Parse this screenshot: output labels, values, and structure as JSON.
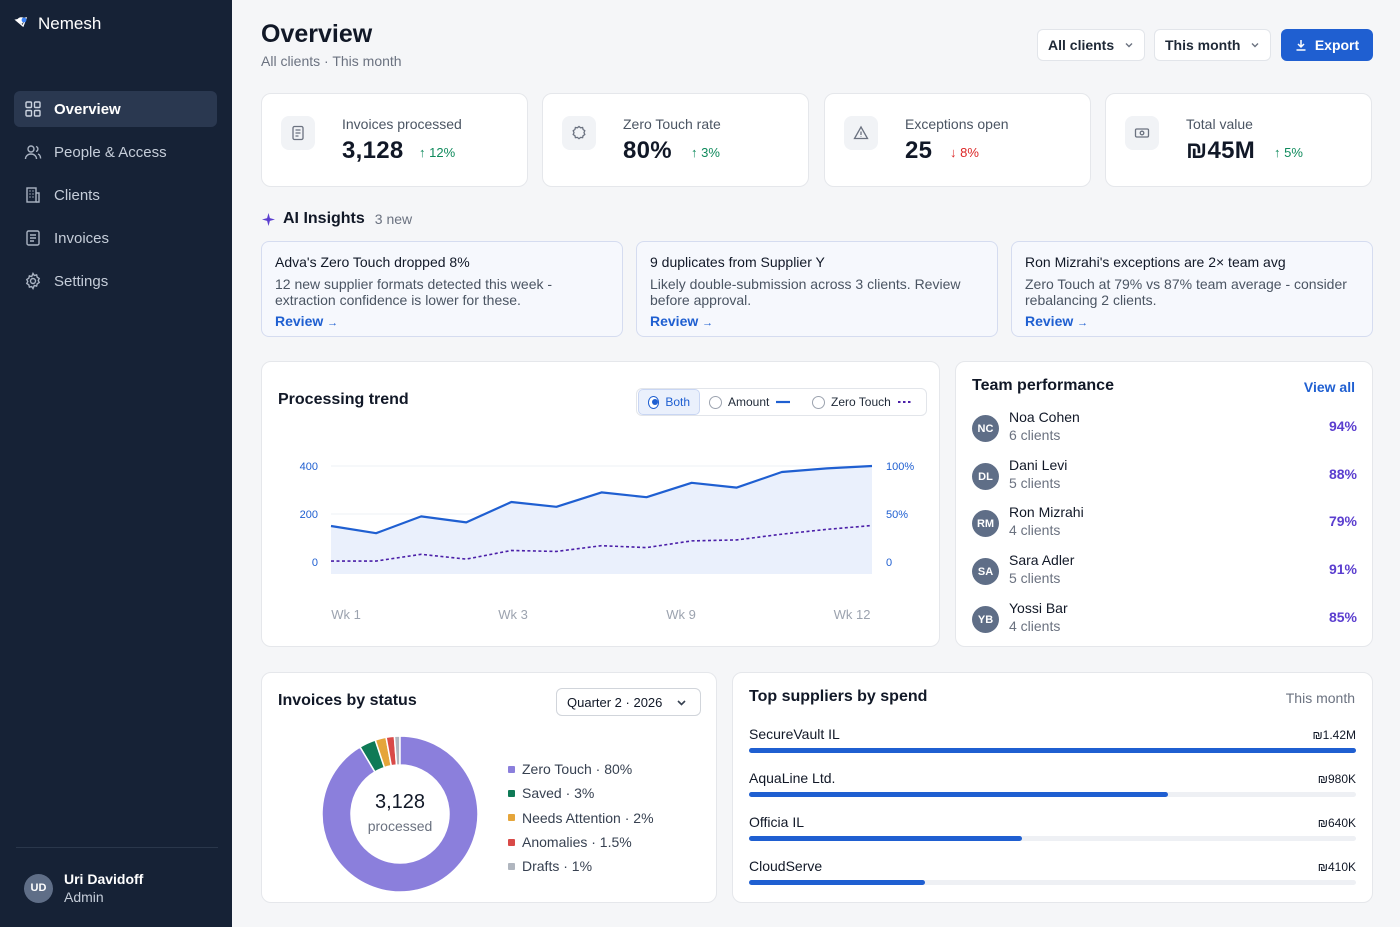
{
  "app": {
    "brand": "Nemesh"
  },
  "sidebar": {
    "items": [
      {
        "label": "Overview",
        "icon": "grid-icon",
        "active": true
      },
      {
        "label": "People & Access",
        "icon": "users-icon",
        "active": false
      },
      {
        "label": "Clients",
        "icon": "building-icon",
        "active": false
      },
      {
        "label": "Invoices",
        "icon": "invoice-icon",
        "active": false
      },
      {
        "label": "Settings",
        "icon": "gear-icon",
        "active": false
      }
    ],
    "user": {
      "initials": "UD",
      "name": "Uri Davidoff",
      "role": "Admin"
    }
  },
  "header": {
    "title": "Overview",
    "subtitle": "All clients · This month",
    "client_filter": "All clients",
    "period_filter": "This month",
    "export_label": "Export"
  },
  "kpis": [
    {
      "label": "Invoices processed",
      "value": "3,128",
      "delta": "12%",
      "direction": "up",
      "icon": "document-icon"
    },
    {
      "label": "Zero Touch rate",
      "value": "80%",
      "delta": "3%",
      "direction": "up",
      "icon": "badge-icon"
    },
    {
      "label": "Exceptions open",
      "value": "25",
      "delta": "8%",
      "direction": "down",
      "icon": "warning-icon"
    },
    {
      "label": "Total value",
      "value": "₪45M",
      "delta": "5%",
      "direction": "up",
      "icon": "cash-icon"
    }
  ],
  "insights": {
    "title": "AI Insights",
    "count": "3 new",
    "items": [
      {
        "title": "Adva's Zero Touch dropped 8%",
        "body": "12 new supplier formats detected this week - extraction confidence is lower for these.",
        "link": "Review"
      },
      {
        "title": "9 duplicates from Supplier Y",
        "body": "Likely double-submission across 3 clients. Review before approval.",
        "link": "Review"
      },
      {
        "title": "Ron Mizrahi's exceptions are 2× team avg",
        "body": "Zero Touch at 79% vs 87% team average - consider rebalancing 2 clients.",
        "link": "Review"
      }
    ]
  },
  "trend": {
    "title": "Processing trend",
    "toggle": {
      "both": "Both",
      "amount": "Amount",
      "zero_touch": "Zero Touch",
      "selected": "both"
    }
  },
  "chart_data": {
    "type": "line",
    "title": "Processing trend",
    "x_tick_labels": [
      "Wk 1",
      "Wk 3",
      "Wk 9",
      "Wk 12"
    ],
    "y_left_ticks": [
      "400",
      "200",
      "0"
    ],
    "y_right_ticks": [
      "100%",
      "50%",
      "0"
    ],
    "ylim_left": [
      0,
      400
    ],
    "ylim_right": [
      0,
      100
    ],
    "series": [
      {
        "name": "Amount",
        "axis": "left",
        "style": "solid-area",
        "values": [
          150,
          120,
          190,
          165,
          250,
          230,
          290,
          270,
          330,
          310,
          375,
          390,
          400
        ]
      },
      {
        "name": "Zero Touch",
        "axis": "right",
        "style": "dashed",
        "values": [
          1,
          1,
          8,
          3,
          12,
          11,
          17,
          15,
          22,
          23,
          29,
          34,
          38
        ]
      }
    ],
    "colors": {
      "amount": "#1f5fd1",
      "zero_touch": "#4b1fa8",
      "area": "#eaf0fc"
    }
  },
  "team": {
    "title": "Team performance",
    "view_all": "View all",
    "members": [
      {
        "initials": "NC",
        "name": "Noa Cohen",
        "clients": "6 clients",
        "pct": "94%"
      },
      {
        "initials": "DL",
        "name": "Dani Levi",
        "clients": "5 clients",
        "pct": "88%"
      },
      {
        "initials": "RM",
        "name": "Ron Mizrahi",
        "clients": "4 clients",
        "pct": "79%"
      },
      {
        "initials": "SA",
        "name": "Sara Adler",
        "clients": "5 clients",
        "pct": "91%"
      },
      {
        "initials": "YB",
        "name": "Yossi Bar",
        "clients": "4 clients",
        "pct": "85%"
      }
    ]
  },
  "status": {
    "title": "Invoices by status",
    "period": "Quarter 2 · 2026",
    "center_value": "3,128",
    "center_label": "processed",
    "slices": [
      {
        "label": "Zero Touch · 80%",
        "value": 80,
        "color": "#8b7fdc"
      },
      {
        "label": "Saved · 3%",
        "value": 3,
        "color": "#0f7a56"
      },
      {
        "label": "Needs Attention · 2%",
        "value": 2,
        "color": "#e5a53a"
      },
      {
        "label": "Anomalies · 1.5%",
        "value": 1.5,
        "color": "#d94a48"
      },
      {
        "label": "Drafts · 1%",
        "value": 1,
        "color": "#b0b6bf"
      }
    ]
  },
  "suppliers": {
    "title": "Top suppliers by spend",
    "period": "This month",
    "items": [
      {
        "name": "SecureVault IL",
        "value": "₪1.42M",
        "fraction": 1.0
      },
      {
        "name": "AquaLine Ltd.",
        "value": "₪980K",
        "fraction": 0.69
      },
      {
        "name": "Officia IL",
        "value": "₪640K",
        "fraction": 0.45
      },
      {
        "name": "CloudServe",
        "value": "₪410K",
        "fraction": 0.29
      }
    ]
  }
}
